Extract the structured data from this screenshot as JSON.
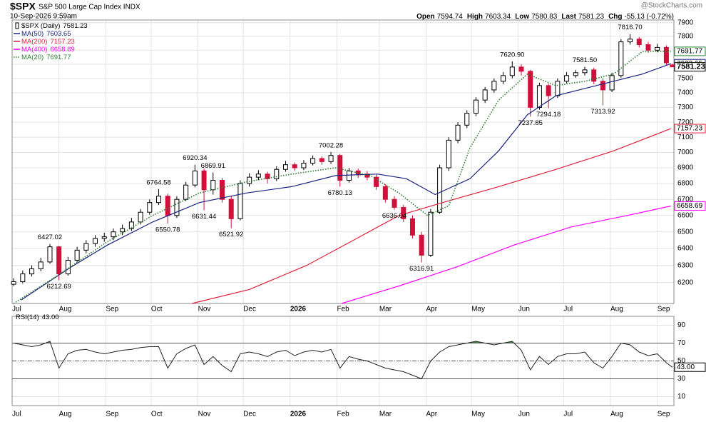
{
  "chart_data": {
    "type": "candlestick",
    "symbol": "$SPX",
    "name": "S&P 500 Large Cap Index INDX",
    "timestamp": "10-Sep-2026 9:59am",
    "source": "@StockCharts.com",
    "quote": [
      [
        "Open",
        "7594.74"
      ],
      [
        "High",
        "7603.34"
      ],
      [
        "Low",
        "7580.83"
      ],
      [
        "Last",
        "7581.23"
      ],
      [
        "Chg",
        "-55.13 (-0.72%)"
      ]
    ],
    "legend_name": "$SPX (Daily)",
    "log_scale": true,
    "grid": true,
    "xlim": [
      0,
      438
    ],
    "xticks": [
      {
        "value": 0,
        "label": "Jul"
      },
      {
        "value": 31,
        "label": "Aug"
      },
      {
        "value": 62,
        "label": "Sep"
      },
      {
        "value": 92,
        "label": "Oct"
      },
      {
        "value": 123,
        "label": "Nov"
      },
      {
        "value": 153,
        "label": "Dec"
      },
      {
        "value": 184,
        "label": "2026"
      },
      {
        "value": 215,
        "label": "Feb"
      },
      {
        "value": 243,
        "label": "Mar"
      },
      {
        "value": 274,
        "label": "Apr"
      },
      {
        "value": 304,
        "label": "May"
      },
      {
        "value": 335,
        "label": "Jun"
      },
      {
        "value": 365,
        "label": "Jul"
      },
      {
        "value": 396,
        "label": "Aug"
      },
      {
        "value": 427,
        "label": "Sep"
      }
    ],
    "ylim": [
      6080,
      7920
    ],
    "yticks": [
      6200,
      6300,
      6400,
      6500,
      6600,
      6700,
      6800,
      6900,
      7000,
      7100,
      7200,
      7300,
      7400,
      7500,
      7600,
      7700,
      7800,
      7900
    ],
    "candles": {
      "x": [
        1,
        7,
        13,
        19,
        25,
        31,
        37,
        43,
        49,
        55,
        61,
        67,
        73,
        79,
        85,
        91,
        97,
        103,
        109,
        115,
        121,
        127,
        133,
        139,
        145,
        151,
        157,
        163,
        169,
        175,
        181,
        187,
        193,
        199,
        205,
        211,
        217,
        223,
        229,
        235,
        241,
        247,
        253,
        259,
        265,
        271,
        277,
        283,
        289,
        295,
        301,
        307,
        313,
        319,
        325,
        331,
        337,
        343,
        349,
        355,
        361,
        367,
        373,
        379,
        385,
        391,
        397,
        403,
        409,
        415,
        421,
        427,
        433,
        437
      ],
      "open": [
        6190,
        6205,
        6250,
        6280,
        6320,
        6410,
        6250,
        6330,
        6390,
        6430,
        6460,
        6470,
        6500,
        6520,
        6560,
        6620,
        6680,
        6720,
        6600,
        6700,
        6790,
        6880,
        6760,
        6820,
        6700,
        6580,
        6800,
        6840,
        6860,
        6830,
        6890,
        6920,
        6900,
        6930,
        6960,
        6940,
        6980,
        6820,
        6880,
        6860,
        6840,
        6780,
        6700,
        6650,
        6580,
        6480,
        6360,
        6620,
        6900,
        7080,
        7180,
        7260,
        7350,
        7420,
        7480,
        7520,
        7580,
        7550,
        7300,
        7450,
        7380,
        7480,
        7520,
        7540,
        7560,
        7480,
        7420,
        7520,
        7760,
        7780,
        7740,
        7700,
        7720,
        7594.74
      ],
      "high": [
        6225,
        6270,
        6300,
        6345,
        6427.02,
        6415,
        6350,
        6410,
        6450,
        6480,
        6495,
        6520,
        6545,
        6585,
        6640,
        6700,
        6764.58,
        6735,
        6720,
        6810,
        6920.34,
        6895,
        6869.91,
        6835,
        6720,
        6820,
        6865,
        6885,
        6875,
        6910,
        6945,
        6935,
        6950,
        6980,
        6975,
        7002.28,
        6990,
        6900,
        6895,
        6880,
        6855,
        6795,
        6720,
        6665,
        6600,
        6500,
        6640,
        6920,
        7100,
        7200,
        7280,
        7370,
        7440,
        7500,
        7545,
        7620.9,
        7600,
        7560,
        7470,
        7465,
        7500,
        7545,
        7560,
        7581.5,
        7575,
        7500,
        7540,
        7780,
        7816.7,
        7795,
        7760,
        7745,
        7735,
        7603.34
      ],
      "low": [
        6180,
        6195,
        6235,
        6265,
        6310,
        6212.69,
        6240,
        6315,
        6370,
        6410,
        6440,
        6450,
        6480,
        6505,
        6545,
        6605,
        6665,
        6550.78,
        6585,
        6690,
        6775,
        6631.44,
        6730,
        6680,
        6521.92,
        6570,
        6780,
        6820,
        6800,
        6815,
        6875,
        6880,
        6885,
        6915,
        6920,
        6925,
        6780.13,
        6805,
        6835,
        6820,
        6760,
        6680,
        6636.04,
        6560,
        6460,
        6316.91,
        6350,
        6610,
        6880,
        7060,
        7160,
        7240,
        7330,
        7400,
        7460,
        7500,
        7520,
        7237.85,
        7285,
        7294.18,
        7365,
        7465,
        7505,
        7520,
        7460,
        7313.92,
        7405,
        7505,
        7740,
        7720,
        7680,
        7685,
        7590,
        7580.83
      ],
      "close": [
        6205,
        6250,
        6280,
        6320,
        6410,
        6250,
        6330,
        6390,
        6430,
        6460,
        6470,
        6500,
        6520,
        6560,
        6620,
        6680,
        6720,
        6600,
        6700,
        6790,
        6880,
        6760,
        6820,
        6700,
        6580,
        6800,
        6840,
        6860,
        6830,
        6890,
        6920,
        6900,
        6930,
        6960,
        6940,
        6980,
        6820,
        6880,
        6860,
        6840,
        6780,
        6700,
        6650,
        6580,
        6480,
        6360,
        6620,
        6900,
        7080,
        7180,
        7260,
        7350,
        7420,
        7480,
        7520,
        7580,
        7550,
        7300,
        7450,
        7380,
        7480,
        7520,
        7540,
        7560,
        7480,
        7420,
        7520,
        7760,
        7780,
        7740,
        7700,
        7720,
        7610,
        7581.23
      ],
      "up_color": "#000000",
      "down_color": "#d0103a"
    },
    "series": [
      {
        "name": "MA(50)",
        "color": "#1a237e",
        "last": 7603.65,
        "x": [
          6,
          39,
          63,
          93,
          124,
          155,
          185,
          214,
          242,
          261,
          280,
          303,
          322,
          341,
          360,
          379,
          398,
          417,
          436
        ],
        "values": [
          6100,
          6290,
          6420,
          6560,
          6680,
          6740,
          6780,
          6850,
          6860,
          6830,
          6730,
          6830,
          7010,
          7250,
          7380,
          7430,
          7480,
          7530,
          7603.65
        ]
      },
      {
        "name": "MA(200)",
        "color": "#e0203a",
        "last": 7157.23,
        "x": [
          119,
          157,
          195,
          228,
          256,
          285,
          322,
          360,
          398,
          436
        ],
        "values": [
          6080,
          6160,
          6300,
          6460,
          6600,
          6680,
          6780,
          6890,
          7010,
          7157.23
        ]
      },
      {
        "name": "MA(400)",
        "color": "#ff00ff",
        "last": 6658.69,
        "x": [
          218,
          256,
          294,
          332,
          370,
          407,
          436
        ],
        "values": [
          6080,
          6180,
          6290,
          6420,
          6530,
          6600,
          6658.69
        ]
      },
      {
        "name": "MA(20)",
        "color": "#2e7d32",
        "dashed": true,
        "last": 7691.77,
        "x": [
          1,
          30,
          63,
          93,
          124,
          155,
          185,
          214,
          237,
          256,
          275,
          289,
          303,
          322,
          341,
          360,
          379,
          398,
          417,
          436
        ],
        "values": [
          6080,
          6240,
          6440,
          6600,
          6740,
          6810,
          6860,
          6900,
          6850,
          6740,
          6600,
          6660,
          7030,
          7350,
          7530,
          7450,
          7480,
          7530,
          7690,
          7691.77
        ]
      }
    ],
    "annotations": [
      {
        "x": 25,
        "value": 6427.02,
        "label": "6427.02"
      },
      {
        "x": 31,
        "value": 6212.69,
        "label": "6212.69"
      },
      {
        "x": 97,
        "value": 6764.58,
        "label": "6764.58"
      },
      {
        "x": 103,
        "value": 6550.78,
        "label": "6550.78"
      },
      {
        "x": 121,
        "value": 6920.34,
        "label": "6920.34"
      },
      {
        "x": 127,
        "value": 6631.44,
        "label": "6631.44"
      },
      {
        "x": 133,
        "value": 6869.91,
        "label": "6869.91"
      },
      {
        "x": 145,
        "value": 6521.92,
        "label": "6521.92"
      },
      {
        "x": 211,
        "value": 7002.28,
        "label": "7002.28"
      },
      {
        "x": 217,
        "value": 6780.13,
        "label": "6780.13"
      },
      {
        "x": 253,
        "value": 6636.04,
        "label": "6636.04"
      },
      {
        "x": 271,
        "value": 6316.91,
        "label": "6316.91"
      },
      {
        "x": 331,
        "value": 7620.9,
        "label": "7620.90"
      },
      {
        "x": 343,
        "value": 7237.85,
        "label": "7237.85"
      },
      {
        "x": 355,
        "value": 7294.18,
        "label": "7294.18"
      },
      {
        "x": 379,
        "value": 7581.5,
        "label": "7581.50"
      },
      {
        "x": 391,
        "value": 7313.92,
        "label": "7313.92"
      },
      {
        "x": 409,
        "value": 7816.7,
        "label": "7816.70"
      }
    ],
    "rsi": {
      "name": "RSI(14)",
      "color": "#222222",
      "fill": "#4e7d4e",
      "last": {
        "value": 43,
        "label": "43.00"
      },
      "ylim": [
        0,
        100
      ],
      "yticks": [
        10,
        30,
        50,
        70,
        90
      ],
      "bands": [
        30,
        50,
        70
      ],
      "values": [
        70,
        68,
        66,
        68,
        72,
        42,
        58,
        62,
        63,
        60,
        58,
        60,
        62,
        63,
        65,
        66,
        66,
        42,
        58,
        64,
        68,
        46,
        55,
        45,
        38,
        58,
        60,
        58,
        55,
        60,
        62,
        56,
        60,
        62,
        60,
        63,
        42,
        55,
        52,
        50,
        46,
        42,
        40,
        38,
        34,
        30,
        50,
        60,
        66,
        68,
        70,
        72,
        70,
        68,
        70,
        72,
        62,
        40,
        55,
        46,
        55,
        58,
        58,
        60,
        48,
        42,
        55,
        70,
        68,
        60,
        56,
        58,
        48,
        43
      ]
    }
  }
}
